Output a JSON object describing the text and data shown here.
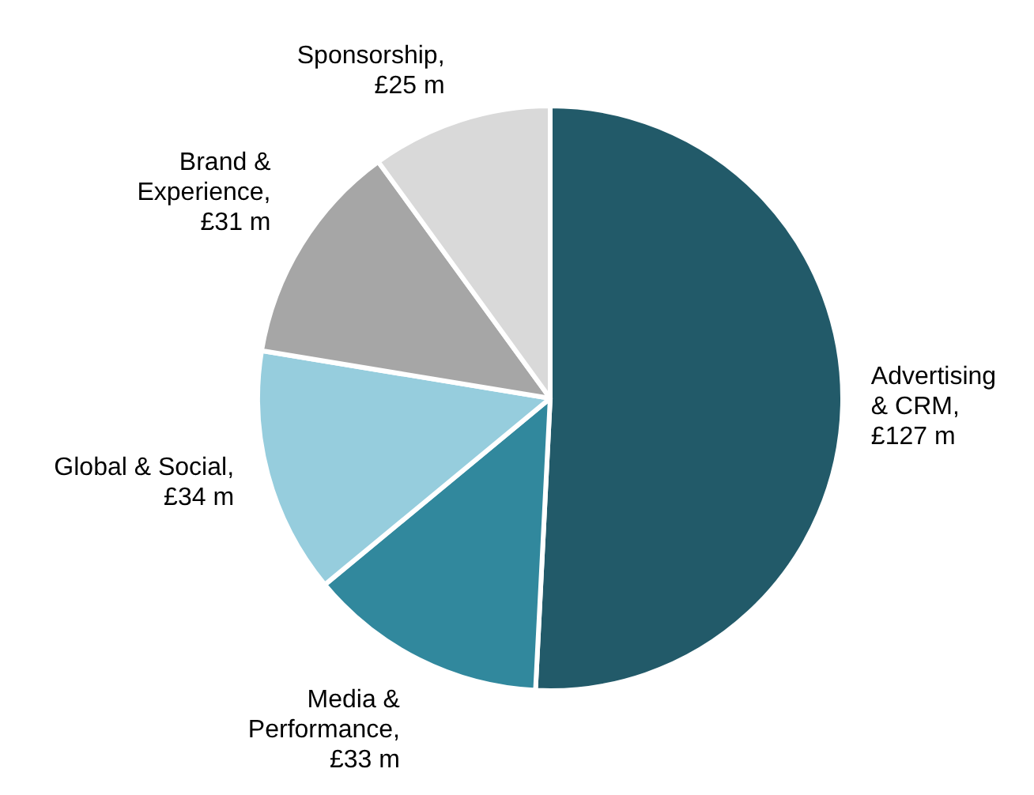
{
  "chart_data": {
    "type": "pie",
    "categories": [
      "Advertising\n& CRM,\n£127 m",
      "Media &\nPerformance,\n£33 m",
      "Global & Social,\n£34 m",
      "Brand &\nExperience,\n£31 m",
      "Sponsorship,\n£25 m"
    ],
    "values": [
      127,
      33,
      34,
      31,
      25
    ],
    "colors": [
      "#225a69",
      "#31889d",
      "#96cddd",
      "#a6a6a6",
      "#d9d9d9"
    ]
  }
}
